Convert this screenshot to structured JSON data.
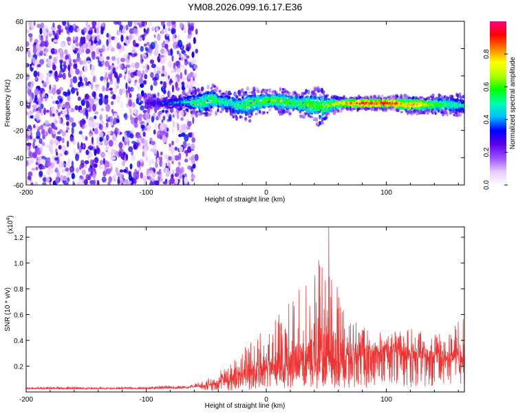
{
  "page": {
    "title": "YM08.2026.099.16.17.E36"
  },
  "chart_data": [
    {
      "type": "heatmap",
      "title": "YM08.2026.099.16.17.E36",
      "xlabel": "Height of straight line (km)",
      "ylabel": "Frequency (Hz)",
      "xlim": [
        -200,
        165
      ],
      "ylim": [
        -60,
        60
      ],
      "x_ticks": [
        -200,
        -100,
        0,
        100
      ],
      "x_tick_labels": [
        "-200",
        "-100",
        "0",
        "100"
      ],
      "y_ticks": [
        -60,
        -40,
        -20,
        0,
        20,
        40,
        60
      ],
      "y_tick_labels": [
        "-60",
        "-40",
        "-20",
        "0",
        "20",
        "40",
        "60"
      ],
      "colorbar": {
        "label": "Normalized spectral amplitude",
        "range": [
          0,
          1
        ],
        "ticks": [
          0.0,
          0.2,
          0.4,
          0.6,
          0.8
        ],
        "tick_labels": [
          "0.0",
          "0.2",
          "0.4",
          "0.6",
          "0.8"
        ],
        "colors": [
          "#ffffff",
          "#e6c8ff",
          "#9a4dff",
          "#5a00e6",
          "#0000ff",
          "#00bfff",
          "#00ffb0",
          "#00ff00",
          "#b0ff00",
          "#ffff00",
          "#ff8000",
          "#ff0000",
          "#ff0080"
        ]
      },
      "noise_region": {
        "x_range": [
          -200,
          -58
        ],
        "y_range": [
          -60,
          60
        ],
        "typical_amplitude": [
          0.05,
          0.35
        ]
      },
      "ridge_track": [
        {
          "x": -100,
          "freq": 0.0,
          "amp": 0.3,
          "width": 2
        },
        {
          "x": -85,
          "freq": 0.0,
          "amp": 0.35,
          "width": 2
        },
        {
          "x": -70,
          "freq": 1.0,
          "amp": 0.45,
          "width": 3
        },
        {
          "x": -62,
          "freq": 1.0,
          "amp": 0.55,
          "width": 5
        },
        {
          "x": -55,
          "freq": 0.0,
          "amp": 0.55,
          "width": 8
        },
        {
          "x": -45,
          "freq": 3.0,
          "amp": 0.6,
          "width": 7
        },
        {
          "x": -38,
          "freq": 1.0,
          "amp": 0.55,
          "width": 5
        },
        {
          "x": -30,
          "freq": 0.0,
          "amp": 0.5,
          "width": 6
        },
        {
          "x": -25,
          "freq": -2.0,
          "amp": 0.55,
          "width": 6
        },
        {
          "x": -15,
          "freq": -1.0,
          "amp": 0.6,
          "width": 8
        },
        {
          "x": -5,
          "freq": 1.0,
          "amp": 0.6,
          "width": 6
        },
        {
          "x": 5,
          "freq": 2.0,
          "amp": 0.65,
          "width": 5
        },
        {
          "x": 15,
          "freq": 1.0,
          "amp": 0.6,
          "width": 6
        },
        {
          "x": 25,
          "freq": 0.0,
          "amp": 0.6,
          "width": 5
        },
        {
          "x": 35,
          "freq": -1.0,
          "amp": 0.65,
          "width": 7
        },
        {
          "x": 45,
          "freq": -3.0,
          "amp": 0.6,
          "width": 9
        },
        {
          "x": 55,
          "freq": -1.0,
          "amp": 0.7,
          "width": 4
        },
        {
          "x": 65,
          "freq": 0.0,
          "amp": 0.8,
          "width": 3
        },
        {
          "x": 75,
          "freq": 0.0,
          "amp": 0.9,
          "width": 3
        },
        {
          "x": 85,
          "freq": 0.0,
          "amp": 0.95,
          "width": 3
        },
        {
          "x": 95,
          "freq": 0.0,
          "amp": 0.95,
          "width": 3
        },
        {
          "x": 105,
          "freq": 0.0,
          "amp": 0.95,
          "width": 3
        },
        {
          "x": 115,
          "freq": -1.0,
          "amp": 0.8,
          "width": 4
        },
        {
          "x": 125,
          "freq": -1.0,
          "amp": 0.85,
          "width": 4
        },
        {
          "x": 135,
          "freq": -1.0,
          "amp": 0.7,
          "width": 4
        },
        {
          "x": 145,
          "freq": -1.0,
          "amp": 0.6,
          "width": 5
        },
        {
          "x": 155,
          "freq": -1.0,
          "amp": 0.55,
          "width": 5
        },
        {
          "x": 165,
          "freq": -2.0,
          "amp": 0.5,
          "width": 5
        }
      ]
    },
    {
      "type": "line",
      "title": "",
      "xlabel": "Height of straight line (km)",
      "ylabel": "SNR (10 * v/v)",
      "y_scale_label": "(x10^4)",
      "y_scale_base": "(x10",
      "y_scale_exp": "4",
      "y_scale_close": ")",
      "xlim": [
        -200,
        165
      ],
      "ylim": [
        0.0,
        1.28
      ],
      "x_ticks": [
        -200,
        -100,
        0,
        100
      ],
      "x_tick_labels": [
        "-200",
        "-100",
        "0",
        "100"
      ],
      "y_ticks": [
        0.2,
        0.4,
        0.6,
        0.8,
        1.0,
        1.2
      ],
      "y_tick_labels": [
        "0.2",
        "0.4",
        "0.6",
        "0.8",
        "1.0",
        "1.2"
      ],
      "color": "#ee3333",
      "series": [
        {
          "name": "SNR",
          "x": [
            -200,
            -180,
            -160,
            -140,
            -120,
            -100,
            -80,
            -70,
            -60,
            -50,
            -40,
            -30,
            -20,
            -10,
            0,
            10,
            20,
            30,
            40,
            50,
            60,
            70,
            80,
            90,
            100,
            110,
            120,
            130,
            140,
            150,
            160,
            165
          ],
          "envelope_high": [
            0.04,
            0.04,
            0.04,
            0.04,
            0.04,
            0.04,
            0.05,
            0.05,
            0.06,
            0.1,
            0.16,
            0.22,
            0.32,
            0.42,
            0.52,
            0.62,
            0.72,
            0.82,
            0.92,
            1.22,
            0.8,
            0.62,
            0.52,
            0.48,
            0.45,
            0.48,
            0.5,
            0.48,
            0.45,
            0.46,
            0.55,
            0.62
          ],
          "baseline": [
            0.025,
            0.025,
            0.025,
            0.025,
            0.025,
            0.025,
            0.03,
            0.03,
            0.04,
            0.05,
            0.08,
            0.1,
            0.14,
            0.16,
            0.2,
            0.22,
            0.24,
            0.25,
            0.26,
            0.26,
            0.27,
            0.3,
            0.32,
            0.32,
            0.33,
            0.32,
            0.31,
            0.3,
            0.29,
            0.28,
            0.28,
            0.28
          ],
          "peak": {
            "x": 52,
            "y": 1.28
          }
        }
      ]
    }
  ]
}
